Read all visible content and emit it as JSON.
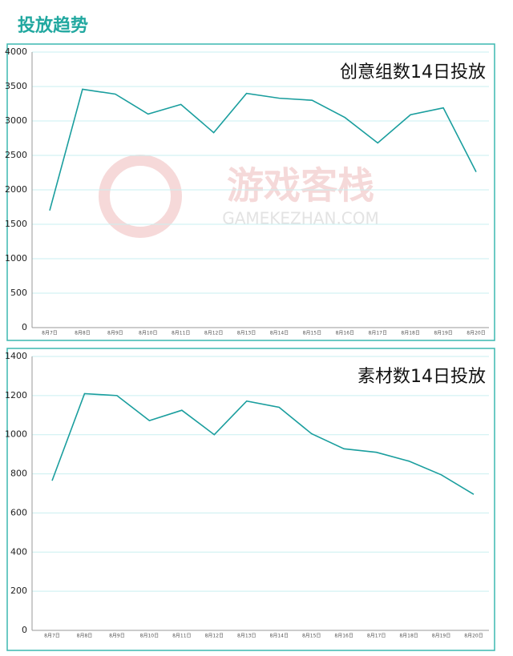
{
  "title": "投放趋势",
  "watermark": {
    "text": "游戏客栈",
    "subtext": "GAMEKEZHAN.COM"
  },
  "chart_data": [
    {
      "type": "line",
      "title": "创意组数14日投放",
      "categories": [
        "8月7日",
        "8月8日",
        "8月9日",
        "8月10日",
        "8月11日",
        "8月12日",
        "8月13日",
        "8月14日",
        "8月15日",
        "8月16日",
        "8月17日",
        "8月18日",
        "8月19日",
        "8月20日"
      ],
      "values": [
        1700,
        3460,
        3390,
        3100,
        3240,
        2830,
        3400,
        3330,
        3300,
        3050,
        2680,
        3090,
        3190,
        2260
      ],
      "color": "#1a9e9e",
      "ylim": [
        0,
        4000
      ],
      "yticks": [
        0,
        500,
        1000,
        1500,
        2000,
        2500,
        3000,
        3500,
        4000
      ],
      "grid": true
    },
    {
      "type": "line",
      "title": "素材数14日投放",
      "categories": [
        "8月7日",
        "8月8日",
        "8月9日",
        "8月10日",
        "8月11日",
        "8月12日",
        "8月13日",
        "8月14日",
        "8月15日",
        "8月16日",
        "8月17日",
        "8月18日",
        "8月19日",
        "8月20日"
      ],
      "values": [
        765,
        1210,
        1200,
        1072,
        1125,
        1000,
        1172,
        1140,
        1005,
        928,
        910,
        865,
        795,
        695
      ],
      "color": "#1a9e9e",
      "ylim": [
        0,
        1400
      ],
      "yticks": [
        0,
        200,
        400,
        600,
        800,
        1000,
        1200,
        1400
      ],
      "grid": true
    }
  ]
}
